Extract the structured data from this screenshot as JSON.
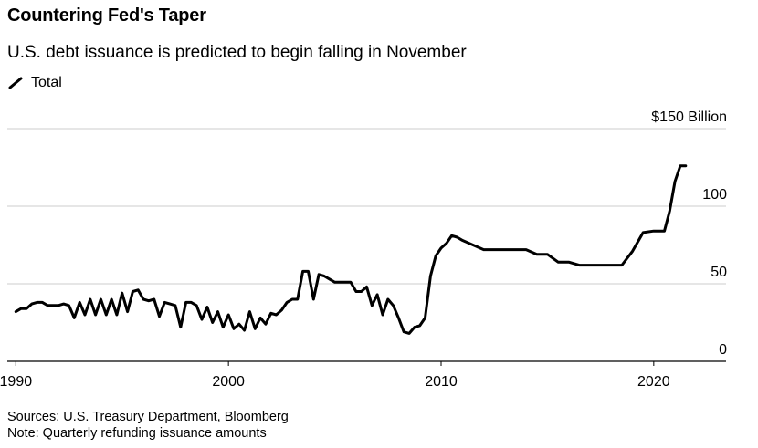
{
  "header": {
    "title": "Countering Fed's Taper",
    "subtitle": "U.S. debt issuance is predicted to begin falling in November",
    "legend_label": "Total"
  },
  "footer": {
    "sources": "Sources: U.S. Treasury Department, Bloomberg",
    "note": "Note: Quarterly refunding issuance amounts"
  },
  "colors": {
    "line": "#000000",
    "grid": "#cccccc",
    "axis": "#000000",
    "text": "#000000"
  },
  "chart_data": {
    "type": "line",
    "title": "Countering Fed's Taper",
    "subtitle": "U.S. debt issuance is predicted to begin falling in November",
    "xlabel": "",
    "ylabel": "",
    "x_ticks": [
      "1990",
      "2000",
      "2010",
      "2020"
    ],
    "y_ticks": [
      "0",
      "50",
      "100",
      "$150 Billion"
    ],
    "y_tick_values": [
      0,
      50,
      100,
      150
    ],
    "xlim": [
      1989.6,
      2023.4
    ],
    "ylim": [
      0,
      150
    ],
    "grid": true,
    "legend": "top-left",
    "y_axis_side": "right",
    "series": [
      {
        "name": "Total",
        "x": [
          1990.0,
          1990.25,
          1990.5,
          1990.75,
          1991.0,
          1991.25,
          1991.5,
          1991.75,
          1992.0,
          1992.25,
          1992.5,
          1992.75,
          1993.0,
          1993.25,
          1993.5,
          1993.75,
          1994.0,
          1994.25,
          1994.5,
          1994.75,
          1995.0,
          1995.25,
          1995.5,
          1995.75,
          1996.0,
          1996.25,
          1996.5,
          1996.75,
          1997.0,
          1997.25,
          1997.5,
          1997.75,
          1998.0,
          1998.25,
          1998.5,
          1998.75,
          1999.0,
          1999.25,
          1999.5,
          1999.75,
          2000.0,
          2000.25,
          2000.5,
          2000.75,
          2001.0,
          2001.25,
          2001.5,
          2001.75,
          2002.0,
          2002.25,
          2002.5,
          2002.75,
          2003.0,
          2003.25,
          2003.5,
          2003.75,
          2004.0,
          2004.25,
          2004.5,
          2004.75,
          2005.0,
          2005.25,
          2005.5,
          2005.75,
          2006.0,
          2006.25,
          2006.5,
          2006.75,
          2007.0,
          2007.25,
          2007.5,
          2007.75,
          2008.0,
          2008.25,
          2008.5,
          2008.75,
          2009.0,
          2009.25,
          2009.5,
          2009.75,
          2010.0,
          2010.25,
          2010.5,
          2010.75,
          2011.0,
          2012.0,
          2013.0,
          2013.5,
          2014.0,
          2014.5,
          2015.0,
          2015.5,
          2016.0,
          2016.5,
          2017.0,
          2017.5,
          2018.0,
          2018.5,
          2019.0,
          2019.5,
          2020.0,
          2020.25,
          2020.5,
          2020.75,
          2021.0,
          2021.25,
          2021.5
        ],
        "values": [
          32,
          34,
          34,
          37,
          38,
          38,
          36,
          36,
          36,
          37,
          36,
          28,
          38,
          30,
          40,
          30,
          40,
          30,
          40,
          30,
          44,
          32,
          45,
          46,
          40,
          39,
          40,
          29,
          38,
          37,
          36,
          22,
          38,
          38,
          36,
          27,
          35,
          25,
          32,
          22,
          30,
          21,
          24,
          20,
          32,
          21,
          28,
          24,
          31,
          30,
          33,
          38,
          40,
          40,
          58,
          58,
          40,
          56,
          55,
          53,
          51,
          51,
          51,
          51,
          45,
          45,
          48,
          36,
          43,
          30,
          40,
          36,
          28,
          19,
          18,
          22,
          23,
          28,
          55,
          68,
          73,
          76,
          81,
          80,
          78,
          72,
          72,
          72,
          72,
          69,
          69,
          64,
          64,
          62,
          62,
          62,
          62,
          62,
          71,
          83,
          84,
          84,
          84,
          97,
          116,
          126,
          126
        ]
      }
    ]
  }
}
